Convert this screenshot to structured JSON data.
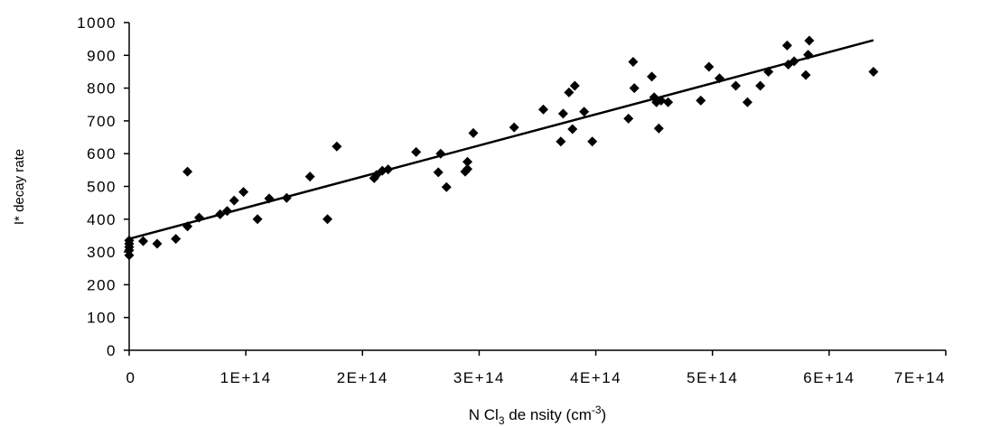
{
  "chart_data": {
    "type": "scatter",
    "ylabel": "I* decay rate",
    "xlabel_parts": {
      "prefix": "N Cl",
      "subscript": "3",
      "middle": " de nsity (cm",
      "superscript": "-3",
      "suffix": ")"
    },
    "xlim": [
      0,
      700000000000000.0
    ],
    "ylim": [
      0,
      1000
    ],
    "x_ticks": [
      0,
      100000000000000.0,
      200000000000000.0,
      300000000000000.0,
      400000000000000.0,
      500000000000000.0,
      600000000000000.0,
      700000000000000.0
    ],
    "x_tick_labels": [
      "0",
      "1E+14",
      "2E+14",
      "3E+14",
      "4E+14",
      "5E+14",
      "6E+14",
      "7E+14"
    ],
    "y_ticks": [
      0,
      100,
      200,
      300,
      400,
      500,
      600,
      700,
      800,
      900,
      1000
    ],
    "y_tick_labels": [
      "0",
      "100",
      "200",
      "300",
      "400",
      "500",
      "600",
      "700",
      "800",
      "900",
      "1000"
    ],
    "grid": false,
    "legend": "none",
    "series": [
      {
        "marker": "diamond",
        "x": [
          0,
          0,
          0,
          0,
          0,
          12000000000000.0,
          24000000000000.0,
          40000000000000.0,
          50000000000000.0,
          50000000000000.0,
          60000000000000.0,
          78000000000000.0,
          84000000000000.0,
          90000000000000.0,
          98000000000000.0,
          110000000000000.0,
          120000000000000.0,
          135000000000000.0,
          155000000000000.0,
          170000000000000.0,
          178000000000000.0,
          210000000000000.0,
          212000000000000.0,
          217000000000000.0,
          222000000000000.0,
          246000000000000.0,
          265000000000000.0,
          267000000000000.0,
          272000000000000.0,
          288000000000000.0,
          290000000000000.0,
          290000000000000.0,
          295000000000000.0,
          330000000000000.0,
          355000000000000.0,
          370000000000000.0,
          372000000000000.0,
          377000000000000.0,
          380000000000000.0,
          382000000000000.0,
          390000000000000.0,
          397000000000000.0,
          428000000000000.0,
          432000000000000.0,
          433000000000000.0,
          448000000000000.0,
          450000000000000.0,
          452000000000000.0,
          454000000000000.0,
          456000000000000.0,
          462000000000000.0,
          490000000000000.0,
          497000000000000.0,
          506000000000000.0,
          520000000000000.0,
          530000000000000.0,
          541000000000000.0,
          548000000000000.0,
          564000000000000.0,
          565000000000000.0,
          570000000000000.0,
          580000000000000.0,
          582000000000000.0,
          583000000000000.0,
          638000000000000.0
        ],
        "y": [
          290,
          305,
          315,
          325,
          335,
          333,
          325,
          340,
          378,
          545,
          405,
          415,
          425,
          457,
          483,
          400,
          463,
          465,
          530,
          400,
          622,
          525,
          535,
          548,
          552,
          605,
          543,
          600,
          498,
          545,
          553,
          575,
          663,
          680,
          735,
          637,
          722,
          787,
          675,
          807,
          728,
          637,
          707,
          880,
          800,
          835,
          772,
          757,
          677,
          762,
          757,
          762,
          865,
          830,
          807,
          757,
          807,
          850,
          930,
          872,
          882,
          840,
          902,
          945,
          850
        ]
      }
    ],
    "trendline": {
      "type": "linear",
      "x": [
        0,
        638000000000000.0
      ],
      "y": [
        340,
        946
      ]
    }
  }
}
